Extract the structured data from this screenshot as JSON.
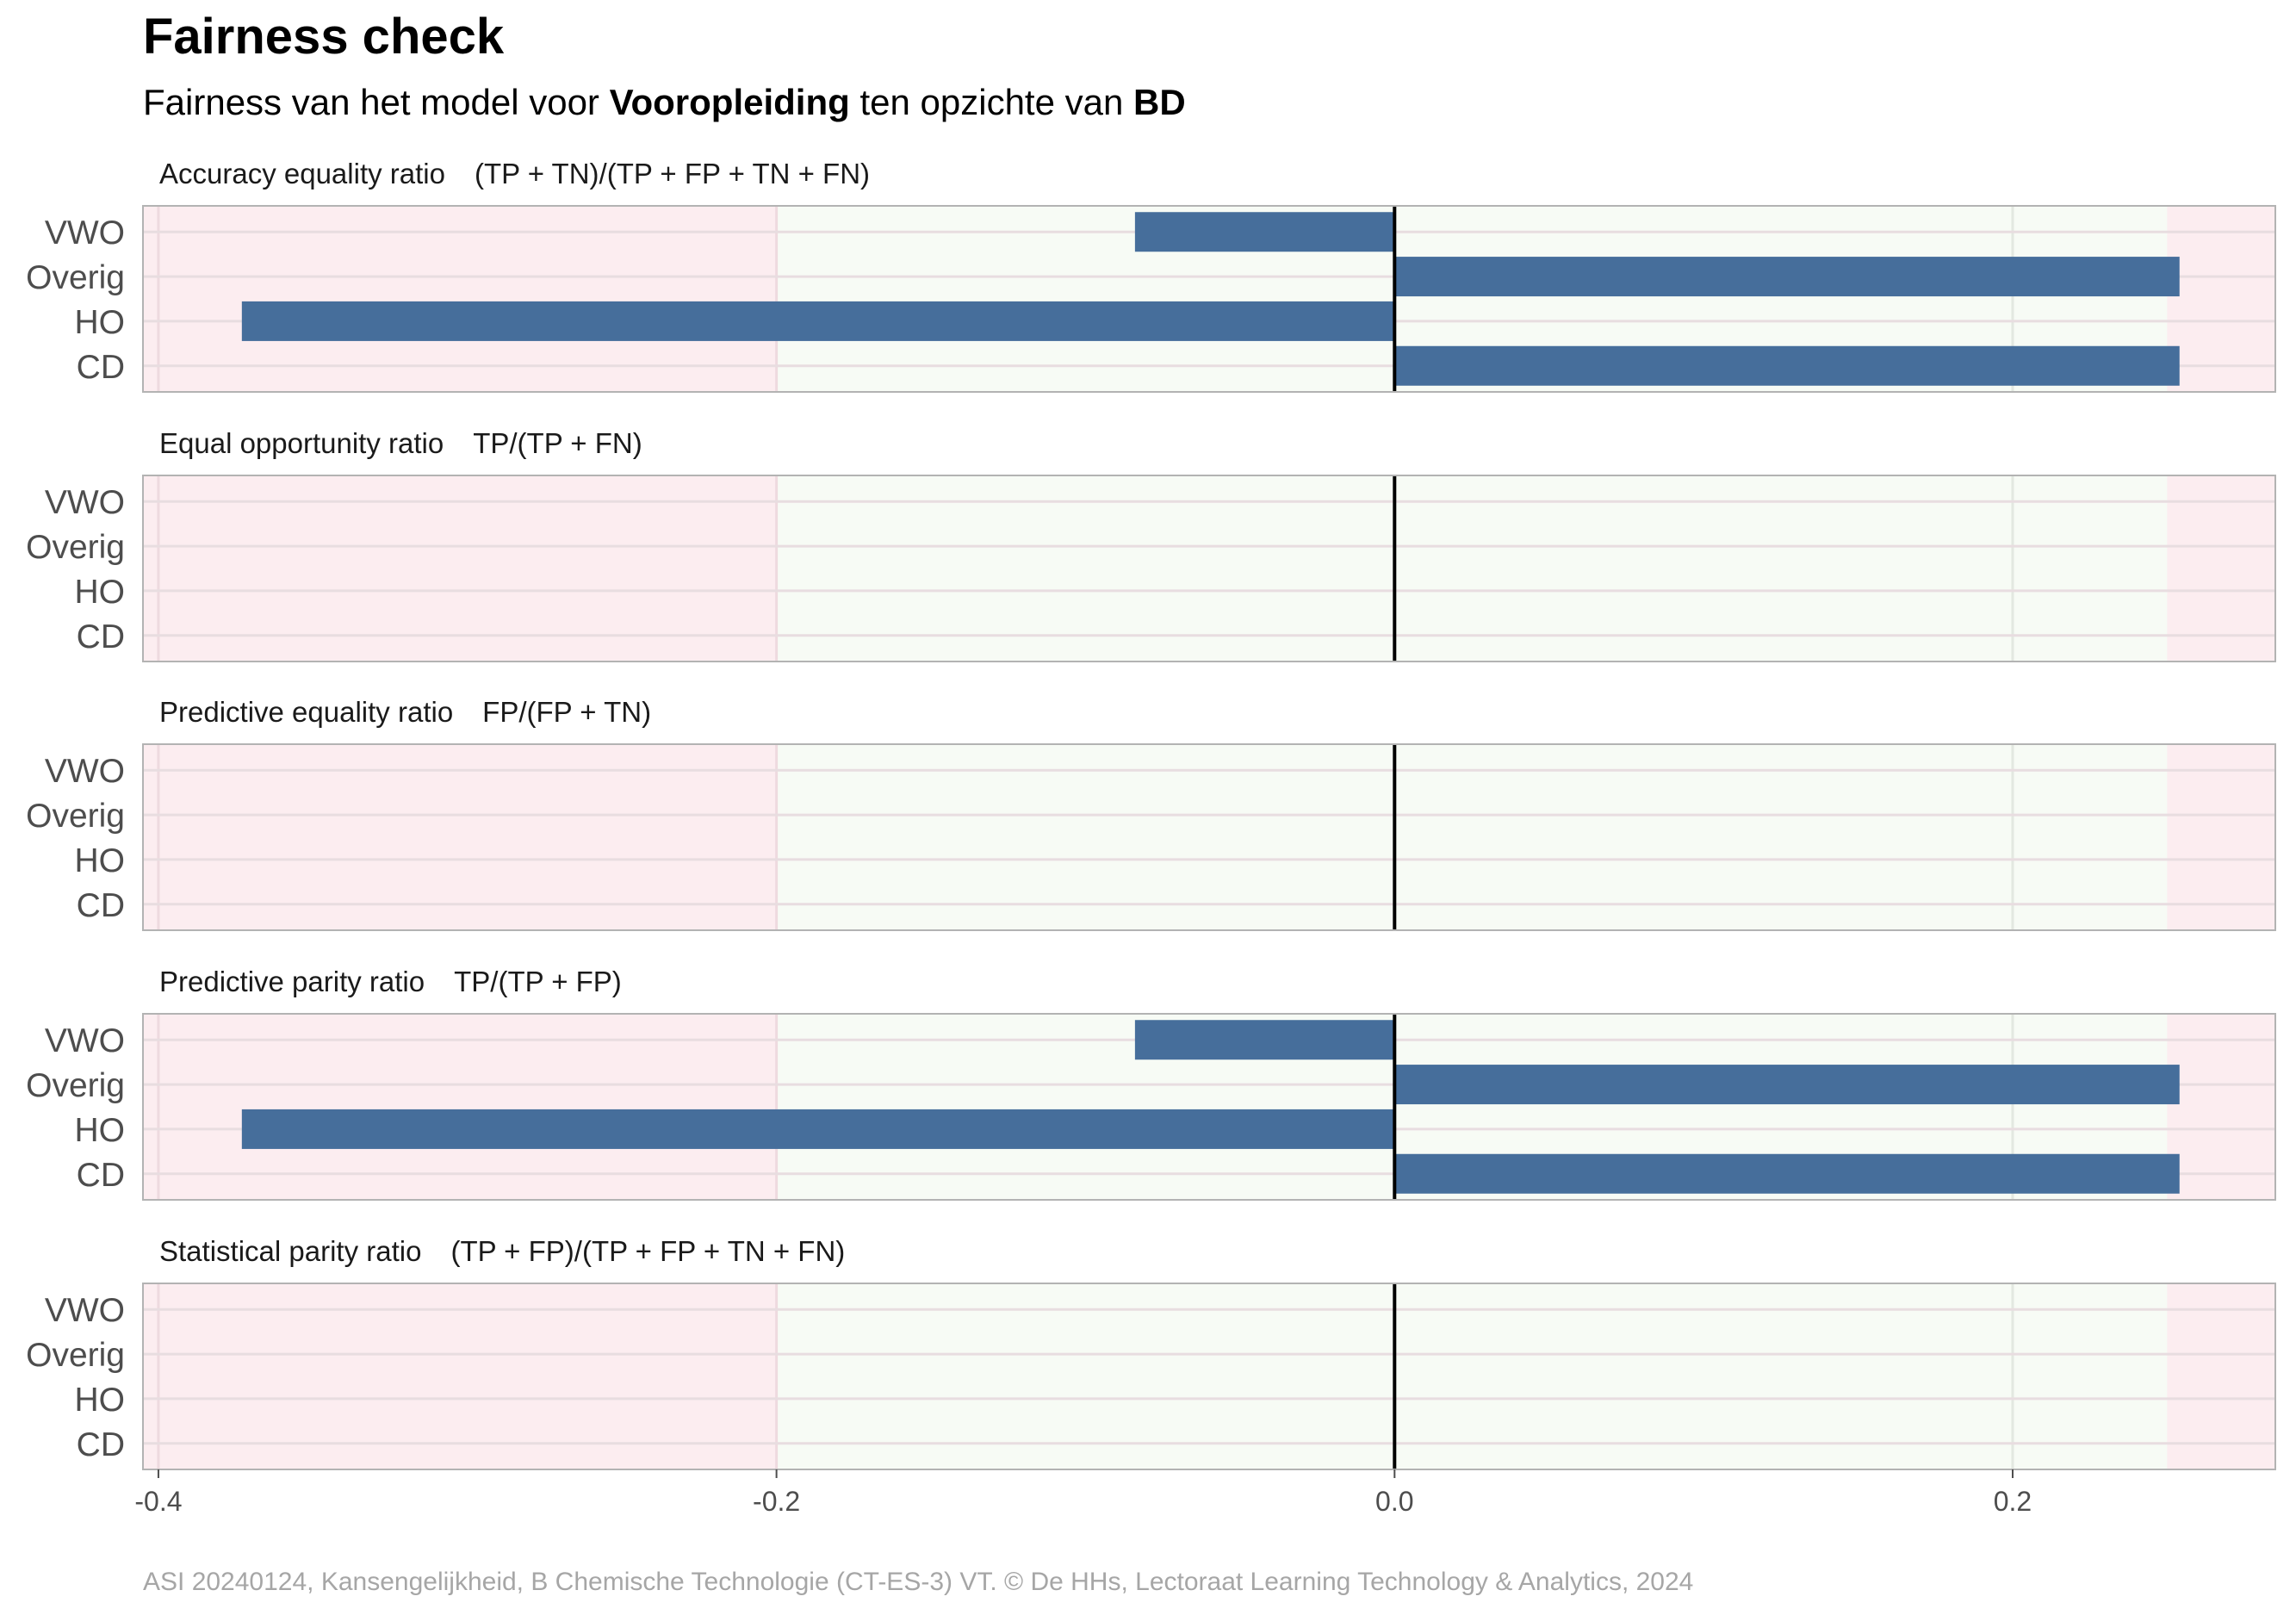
{
  "header": {
    "title": "Fairness check",
    "subtitle_prefix": "Fairness van het model voor ",
    "subtitle_var": "Vooropleiding",
    "subtitle_mid": " ten opzichte van ",
    "subtitle_ref": "BD"
  },
  "caption": "ASI 20240124, Kansengelijkheid, B Chemische Technologie (CT-ES-3) VT. © De HHs, Lectoraat Learning Technology & Analytics, 2024",
  "colors": {
    "bar": "#466E9B",
    "fair_zone": "#F7FBF5",
    "unfair_zone": "#FCEDF0",
    "zero_line": "#000000",
    "panel_border": "#B3B3B3"
  },
  "chart_data": {
    "type": "bar",
    "orientation": "horizontal",
    "categories": [
      "VWO",
      "Overig",
      "HO",
      "CD"
    ],
    "xlim": [
      -0.405,
      0.285
    ],
    "xticks": [
      -0.4,
      -0.2,
      0.0,
      0.2
    ],
    "xtick_labels": [
      "-0.4",
      "-0.2",
      "0.0",
      "0.2"
    ],
    "fair_range": [
      -0.2,
      0.25
    ],
    "panels": [
      {
        "name": "Accuracy equality ratio",
        "formula": "(TP + TN)/(TP + FP + TN + FN)",
        "values": [
          -0.084,
          0.254,
          -0.373,
          0.254
        ]
      },
      {
        "name": "Equal opportunity ratio",
        "formula": "TP/(TP + FN)",
        "values": [
          null,
          null,
          null,
          null
        ]
      },
      {
        "name": "Predictive equality ratio",
        "formula": "FP/(FP + TN)",
        "values": [
          null,
          null,
          null,
          null
        ]
      },
      {
        "name": "Predictive parity ratio",
        "formula": "TP/(TP + FP)",
        "values": [
          -0.084,
          0.254,
          -0.373,
          0.254
        ]
      },
      {
        "name": "Statistical parity ratio",
        "formula": "(TP + FP)/(TP + FP + TN + FN)",
        "values": [
          null,
          null,
          null,
          null
        ]
      }
    ]
  }
}
